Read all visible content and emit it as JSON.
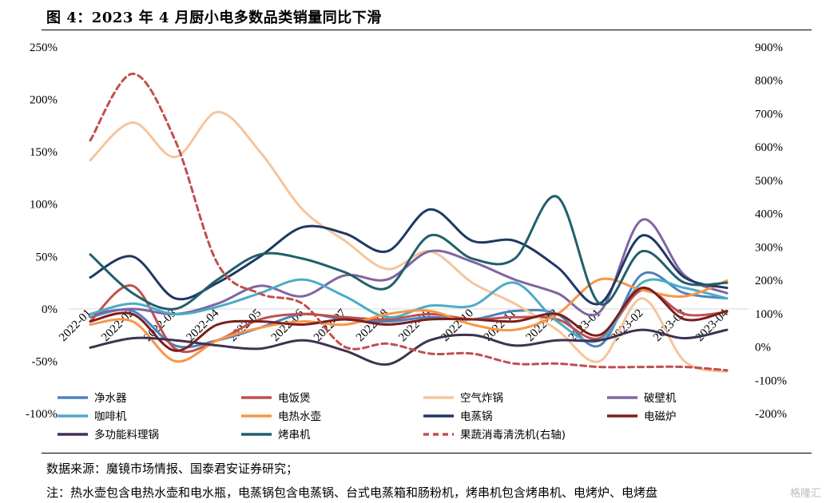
{
  "header": {
    "title": "图 4：2023 年 4 月厨小电多数品类销量同比下滑"
  },
  "footer": {
    "source": "数据来源：魔镜市场情报、国泰君安证券研究；",
    "note": "注：热水壶包含电热水壶和电水瓶，电蒸锅包含电蒸锅、台式电蒸箱和肠粉机，烤串机包含烤串机、电烤炉、电烤盘"
  },
  "watermark": "格隆汇",
  "chart_data": {
    "type": "line",
    "x": [
      "2022-01",
      "2022-02",
      "2022-03",
      "2022-04",
      "2022-05",
      "2022-06",
      "2022-07",
      "2022-08",
      "2022-09",
      "2022-10",
      "2022-11",
      "2022-12",
      "2023-01",
      "2023-02",
      "2023-03",
      "2023-04"
    ],
    "y_left": {
      "ticks": [
        "250%",
        "200%",
        "150%",
        "100%",
        "50%",
        "0%",
        "-50%",
        "-100%"
      ],
      "lim": [
        -100,
        250
      ]
    },
    "y_right": {
      "ticks": [
        "900%",
        "800%",
        "700%",
        "600%",
        "500%",
        "400%",
        "300%",
        "200%",
        "100%",
        "0%",
        "-100%",
        "-200%"
      ],
      "lim": [
        -200,
        900
      ]
    },
    "series": [
      {
        "name": "净水器",
        "color": "#4e81bd",
        "axis": "left",
        "dash": false,
        "values": [
          -8,
          -2,
          -35,
          -30,
          -18,
          -5,
          -10,
          -12,
          -8,
          -10,
          -2,
          -5,
          -35,
          33,
          15,
          10
        ]
      },
      {
        "name": "电饭煲",
        "color": "#c0504d",
        "axis": "left",
        "dash": false,
        "values": [
          -12,
          22,
          -38,
          -30,
          -10,
          -5,
          -8,
          -10,
          -5,
          -10,
          -8,
          -10,
          -28,
          18,
          -5,
          -3
        ]
      },
      {
        "name": "空气炸锅",
        "color": "#f5c59d",
        "axis": "left",
        "dash": false,
        "values": [
          142,
          178,
          145,
          188,
          150,
          95,
          65,
          38,
          55,
          25,
          5,
          -20,
          -50,
          10,
          -50,
          -60
        ]
      },
      {
        "name": "破壁机",
        "color": "#8064a2",
        "axis": "left",
        "dash": false,
        "values": [
          -5,
          0,
          -5,
          5,
          22,
          12,
          32,
          28,
          55,
          45,
          28,
          15,
          -3,
          85,
          32,
          15
        ]
      },
      {
        "name": "咖啡机",
        "color": "#4bacc6",
        "axis": "left",
        "dash": false,
        "values": [
          -5,
          5,
          -5,
          2,
          15,
          28,
          12,
          -8,
          3,
          3,
          25,
          -12,
          -30,
          25,
          20,
          10
        ]
      },
      {
        "name": "电热水壶",
        "color": "#f79646",
        "axis": "left",
        "dash": false,
        "values": [
          -15,
          -12,
          -50,
          -30,
          -18,
          -12,
          -15,
          -5,
          -2,
          -15,
          -20,
          -5,
          28,
          18,
          12,
          27
        ]
      },
      {
        "name": "电蒸锅",
        "color": "#1f3864",
        "axis": "left",
        "dash": false,
        "values": [
          30,
          50,
          10,
          25,
          50,
          78,
          72,
          55,
          95,
          65,
          65,
          40,
          5,
          70,
          30,
          20
        ]
      },
      {
        "name": "电磁炉",
        "color": "#7b1e1e",
        "axis": "left",
        "dash": false,
        "values": [
          -12,
          -5,
          -40,
          -15,
          -12,
          -15,
          -10,
          -15,
          -10,
          -10,
          -12,
          -5,
          -25,
          20,
          -10,
          -2
        ]
      },
      {
        "name": "多功能料理锅",
        "color": "#403152",
        "axis": "left",
        "dash": false,
        "values": [
          -37,
          -28,
          -30,
          -35,
          -38,
          -30,
          -40,
          -53,
          -30,
          -25,
          -35,
          -30,
          -30,
          -20,
          -28,
          -20
        ]
      },
      {
        "name": "烤串机",
        "color": "#215f6b",
        "axis": "left",
        "dash": false,
        "values": [
          52,
          15,
          0,
          28,
          52,
          48,
          35,
          20,
          70,
          48,
          48,
          107,
          5,
          55,
          25,
          25
        ]
      },
      {
        "name": "果蔬消毒清洗机(右轴)",
        "color": "#c0504d",
        "axis": "right",
        "dash": true,
        "values": [
          620,
          820,
          620,
          250,
          160,
          130,
          0,
          10,
          -20,
          -20,
          -50,
          -50,
          -60,
          -60,
          -60,
          -70
        ]
      }
    ]
  }
}
